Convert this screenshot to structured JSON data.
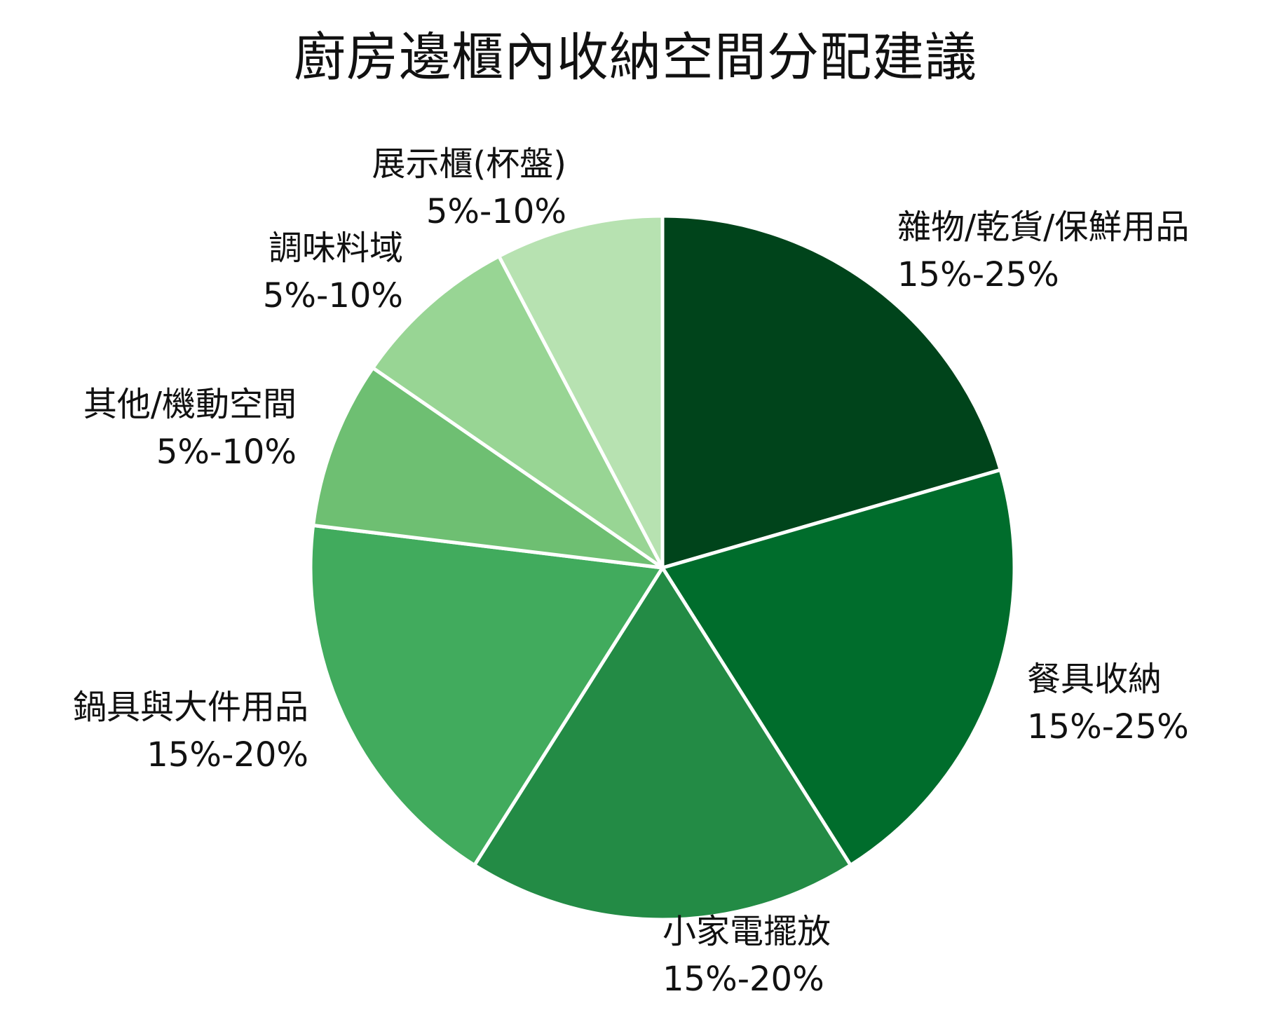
{
  "chart_data": {
    "type": "pie",
    "title": "廚房邊櫃內收納空間分配建議",
    "start_angle_deg": 0,
    "direction": "clockwise",
    "slices": [
      {
        "name": "雜物/乾貨/保鮮用品",
        "range_label": "15%-25%",
        "value": 20,
        "color": "#00441b"
      },
      {
        "name": "餐具收納",
        "range_label": "15%-25%",
        "value": 20,
        "color": "#006d2c"
      },
      {
        "name": "小家電擺放",
        "range_label": "15%-20%",
        "value": 17.5,
        "color": "#238b45"
      },
      {
        "name": "鍋具與大件用品",
        "range_label": "15%-20%",
        "value": 17.5,
        "color": "#41ab5d"
      },
      {
        "name": "其他/機動空間",
        "range_label": "5%-10%",
        "value": 7.5,
        "color": "#6ebf72"
      },
      {
        "name": "調味料域",
        "range_label": "5%-10%",
        "value": 7.5,
        "color": "#98d594"
      },
      {
        "name": "展示櫃(杯盤)",
        "range_label": "5%-10%",
        "value": 7.5,
        "color": "#b7e2b1"
      }
    ],
    "slice_border_color": "#ffffff"
  }
}
